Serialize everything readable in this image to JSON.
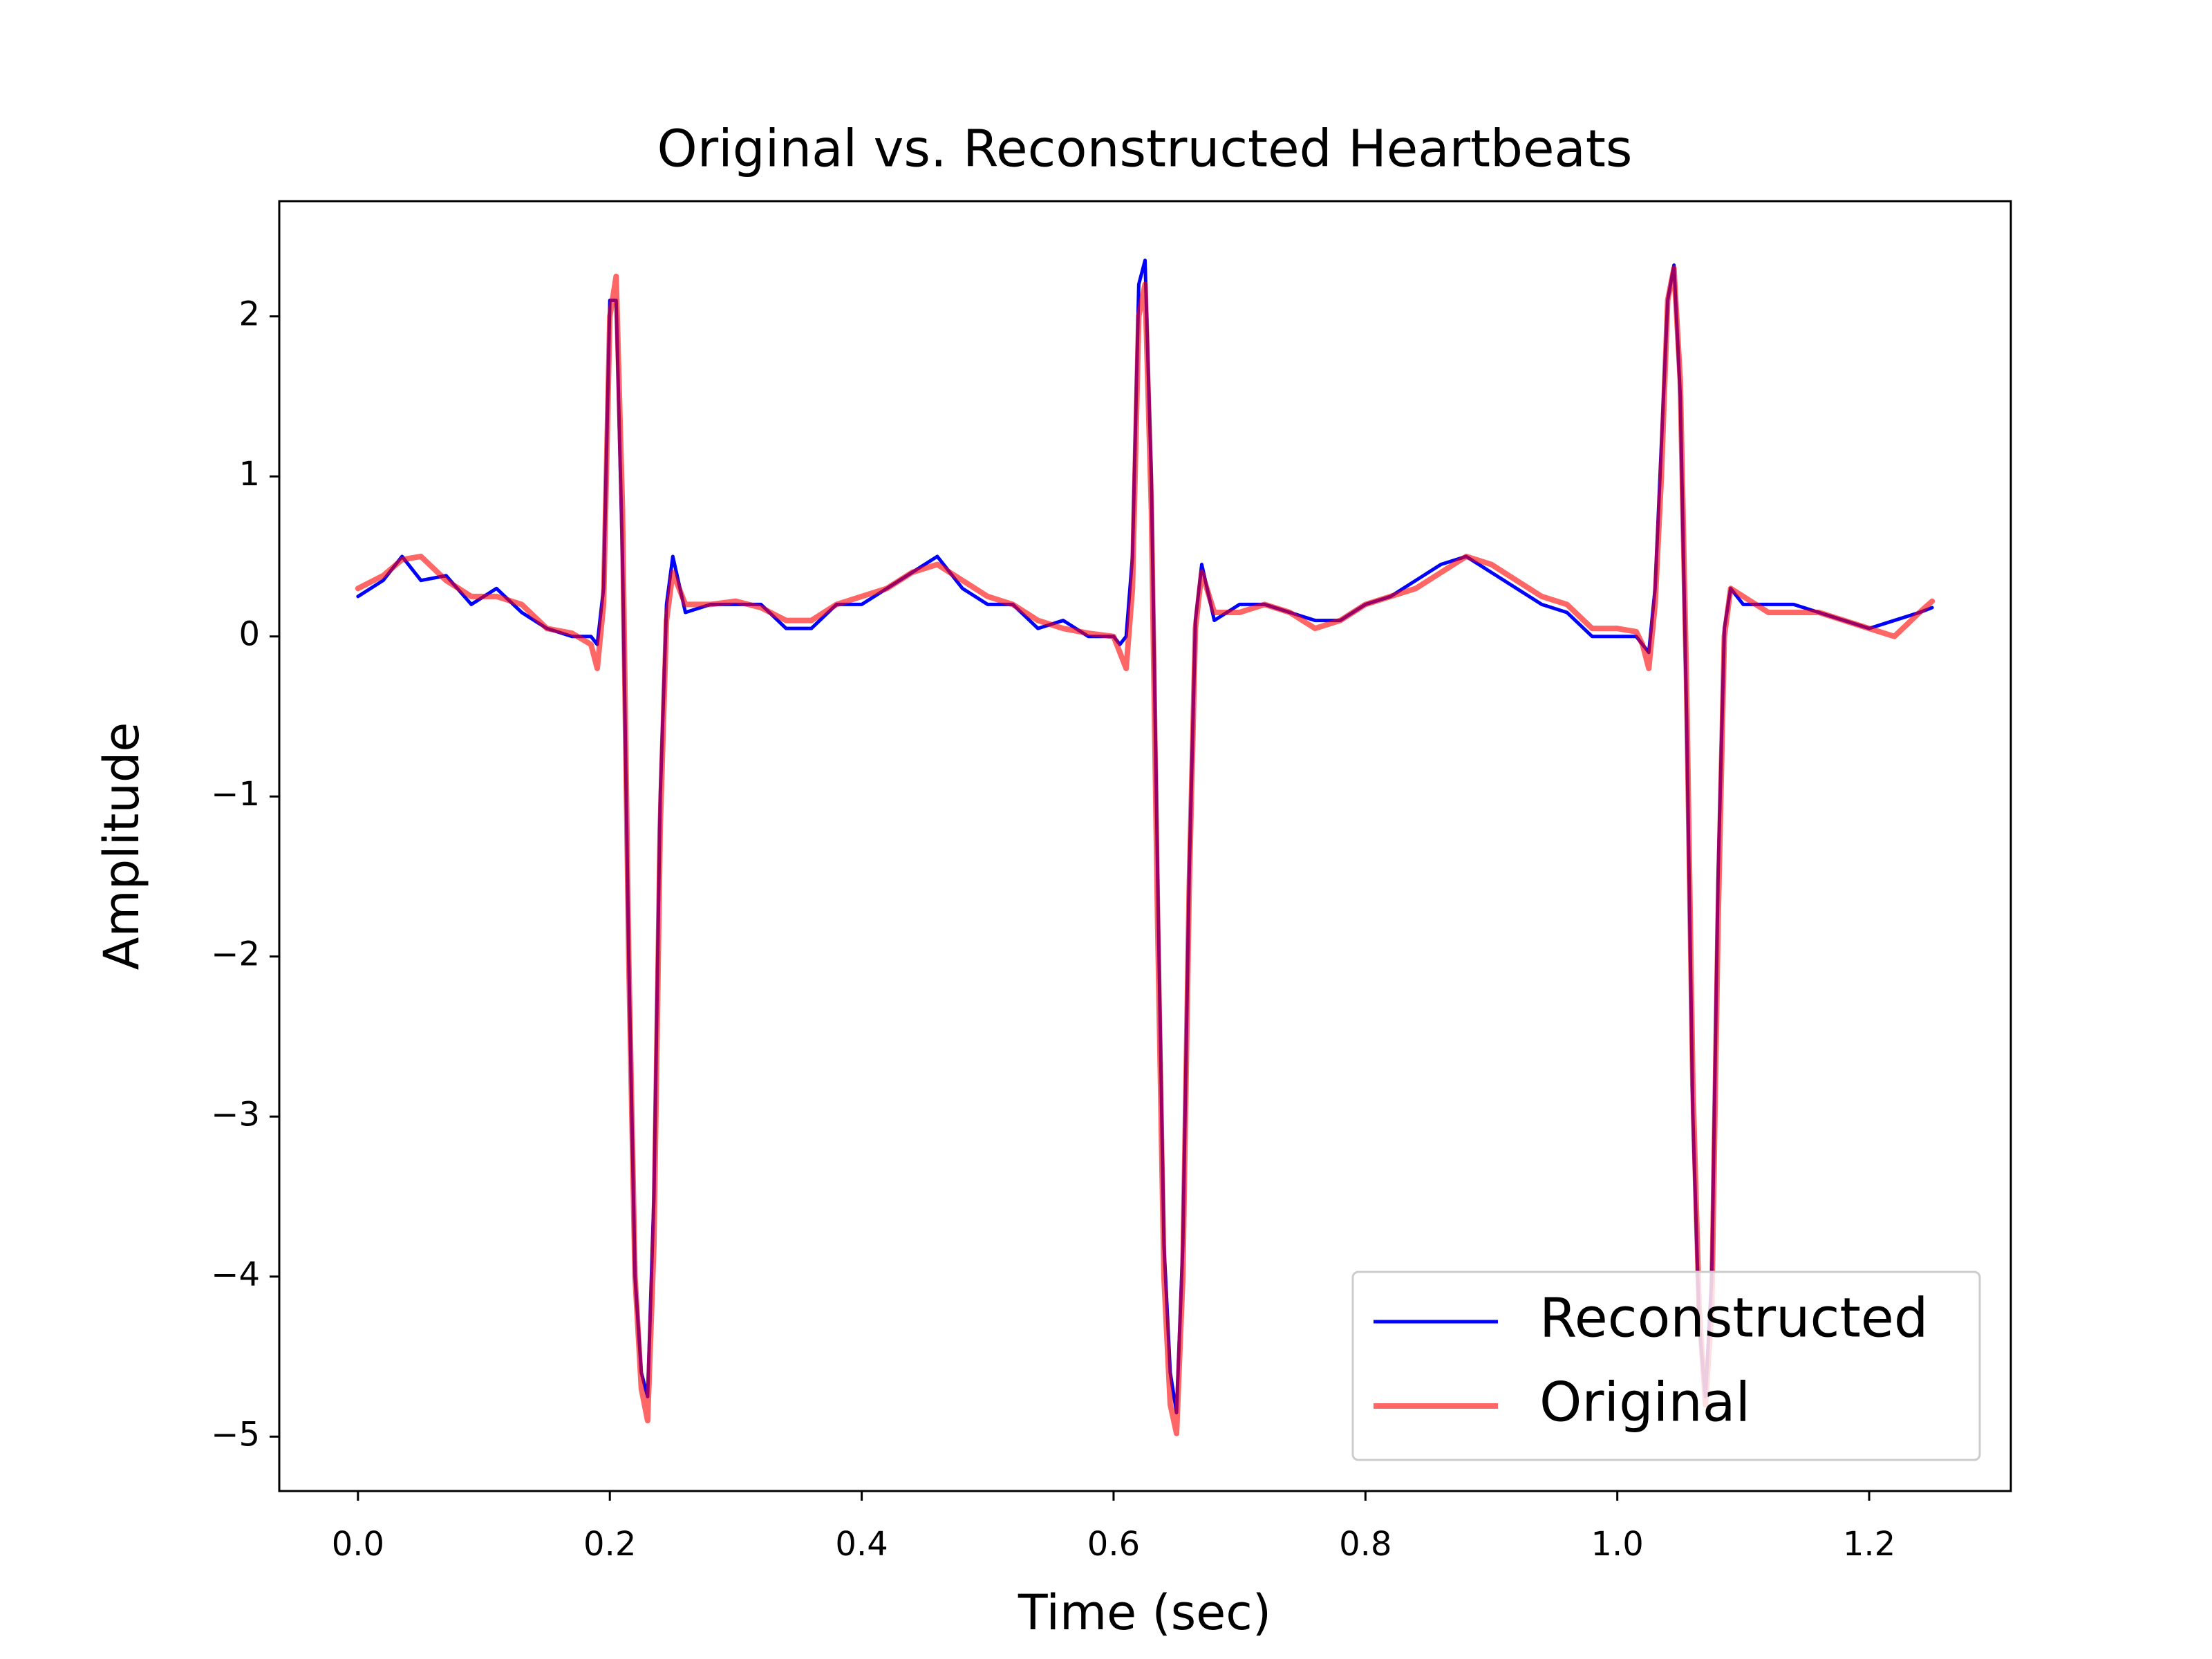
{
  "chart_data": {
    "type": "line",
    "title": "Original vs. Reconstructed Heartbeats",
    "xlabel": "Time (sec)",
    "ylabel": "Amplitude",
    "x": [
      0,
      0.02,
      0.035,
      0.05,
      0.07,
      0.09,
      0.11,
      0.13,
      0.15,
      0.17,
      0.185,
      0.19,
      0.195,
      0.2,
      0.205,
      0.21,
      0.215,
      0.22,
      0.225,
      0.23,
      0.235,
      0.24,
      0.245,
      0.25,
      0.26,
      0.28,
      0.3,
      0.32,
      0.34,
      0.36,
      0.38,
      0.4,
      0.42,
      0.44,
      0.46,
      0.48,
      0.5,
      0.52,
      0.54,
      0.56,
      0.58,
      0.6,
      0.605,
      0.61,
      0.615,
      0.62,
      0.625,
      0.63,
      0.635,
      0.64,
      0.645,
      0.65,
      0.655,
      0.66,
      0.665,
      0.67,
      0.68,
      0.7,
      0.72,
      0.74,
      0.76,
      0.78,
      0.8,
      0.82,
      0.84,
      0.86,
      0.88,
      0.9,
      0.92,
      0.94,
      0.96,
      0.98,
      1.0,
      1.015,
      1.02,
      1.025,
      1.03,
      1.035,
      1.04,
      1.045,
      1.05,
      1.055,
      1.06,
      1.065,
      1.07,
      1.075,
      1.08,
      1.085,
      1.09,
      1.1,
      1.12,
      1.14,
      1.16,
      1.18,
      1.2,
      1.22,
      1.24,
      1.25
    ],
    "series": [
      {
        "name": "Reconstructed",
        "color": "#0000ff",
        "alpha": 1,
        "width": 5,
        "values": [
          0.25,
          0.35,
          0.5,
          0.35,
          0.38,
          0.2,
          0.3,
          0.15,
          0.05,
          0.0,
          0.0,
          -0.05,
          0.3,
          2.1,
          2.1,
          0.5,
          -2.0,
          -4.0,
          -4.6,
          -4.75,
          -3.5,
          -1.0,
          0.2,
          0.5,
          0.15,
          0.2,
          0.2,
          0.2,
          0.05,
          0.05,
          0.2,
          0.2,
          0.3,
          0.4,
          0.5,
          0.3,
          0.2,
          0.2,
          0.05,
          0.1,
          0.0,
          0.0,
          -0.05,
          0.0,
          0.5,
          2.2,
          2.35,
          1.0,
          -1.5,
          -3.8,
          -4.6,
          -4.85,
          -3.8,
          -1.5,
          0.1,
          0.45,
          0.1,
          0.2,
          0.2,
          0.15,
          0.1,
          0.1,
          0.2,
          0.25,
          0.35,
          0.45,
          0.5,
          0.4,
          0.3,
          0.2,
          0.15,
          0.0,
          0.0,
          0.0,
          -0.05,
          -0.1,
          0.3,
          1.2,
          2.1,
          2.32,
          1.5,
          -0.5,
          -3.0,
          -4.3,
          -4.75,
          -4.0,
          -1.5,
          0.05,
          0.3,
          0.2,
          0.2,
          0.2,
          0.15,
          0.1,
          0.05,
          0.1,
          0.15,
          0.18
        ]
      },
      {
        "name": "Original",
        "color": "#ff0000",
        "alpha": 0.6,
        "width": 8,
        "values": [
          0.3,
          0.38,
          0.48,
          0.5,
          0.35,
          0.25,
          0.25,
          0.2,
          0.05,
          0.02,
          -0.05,
          -0.2,
          0.2,
          2.0,
          2.25,
          0.8,
          -2.0,
          -4.0,
          -4.7,
          -4.9,
          -3.8,
          -1.2,
          0.1,
          0.4,
          0.2,
          0.2,
          0.22,
          0.18,
          0.1,
          0.1,
          0.2,
          0.25,
          0.3,
          0.4,
          0.45,
          0.35,
          0.25,
          0.2,
          0.1,
          0.05,
          0.02,
          0.0,
          -0.1,
          -0.2,
          0.3,
          2.0,
          2.2,
          0.8,
          -1.8,
          -4.0,
          -4.8,
          -4.98,
          -4.0,
          -1.6,
          0.05,
          0.4,
          0.15,
          0.15,
          0.2,
          0.15,
          0.05,
          0.1,
          0.2,
          0.25,
          0.3,
          0.4,
          0.5,
          0.45,
          0.35,
          0.25,
          0.2,
          0.05,
          0.05,
          0.03,
          -0.05,
          -0.2,
          0.2,
          1.0,
          2.1,
          2.3,
          1.6,
          -0.3,
          -2.8,
          -4.2,
          -4.8,
          -4.2,
          -1.8,
          0.0,
          0.3,
          0.25,
          0.15,
          0.15,
          0.15,
          0.1,
          0.05,
          0.0,
          0.15,
          0.22
        ]
      }
    ],
    "xlim": [
      -0.0625,
      1.3125
    ],
    "ylim": [
      -5.34,
      2.72
    ],
    "xticks": [
      {
        "value": 0,
        "label": "0.0"
      },
      {
        "value": 0.2,
        "label": "0.2"
      },
      {
        "value": 0.4,
        "label": "0.4"
      },
      {
        "value": 0.6,
        "label": "0.6"
      },
      {
        "value": 0.8,
        "label": "0.8"
      },
      {
        "value": 1.0,
        "label": "1.0"
      },
      {
        "value": 1.2,
        "label": "1.2"
      }
    ],
    "yticks": [
      {
        "value": -5,
        "label": "−5"
      },
      {
        "value": -4,
        "label": "−4"
      },
      {
        "value": -3,
        "label": "−3"
      },
      {
        "value": -2,
        "label": "−2"
      },
      {
        "value": -1,
        "label": "−1"
      },
      0,
      1,
      2
    ],
    "legend": "lower right",
    "grid": false
  }
}
